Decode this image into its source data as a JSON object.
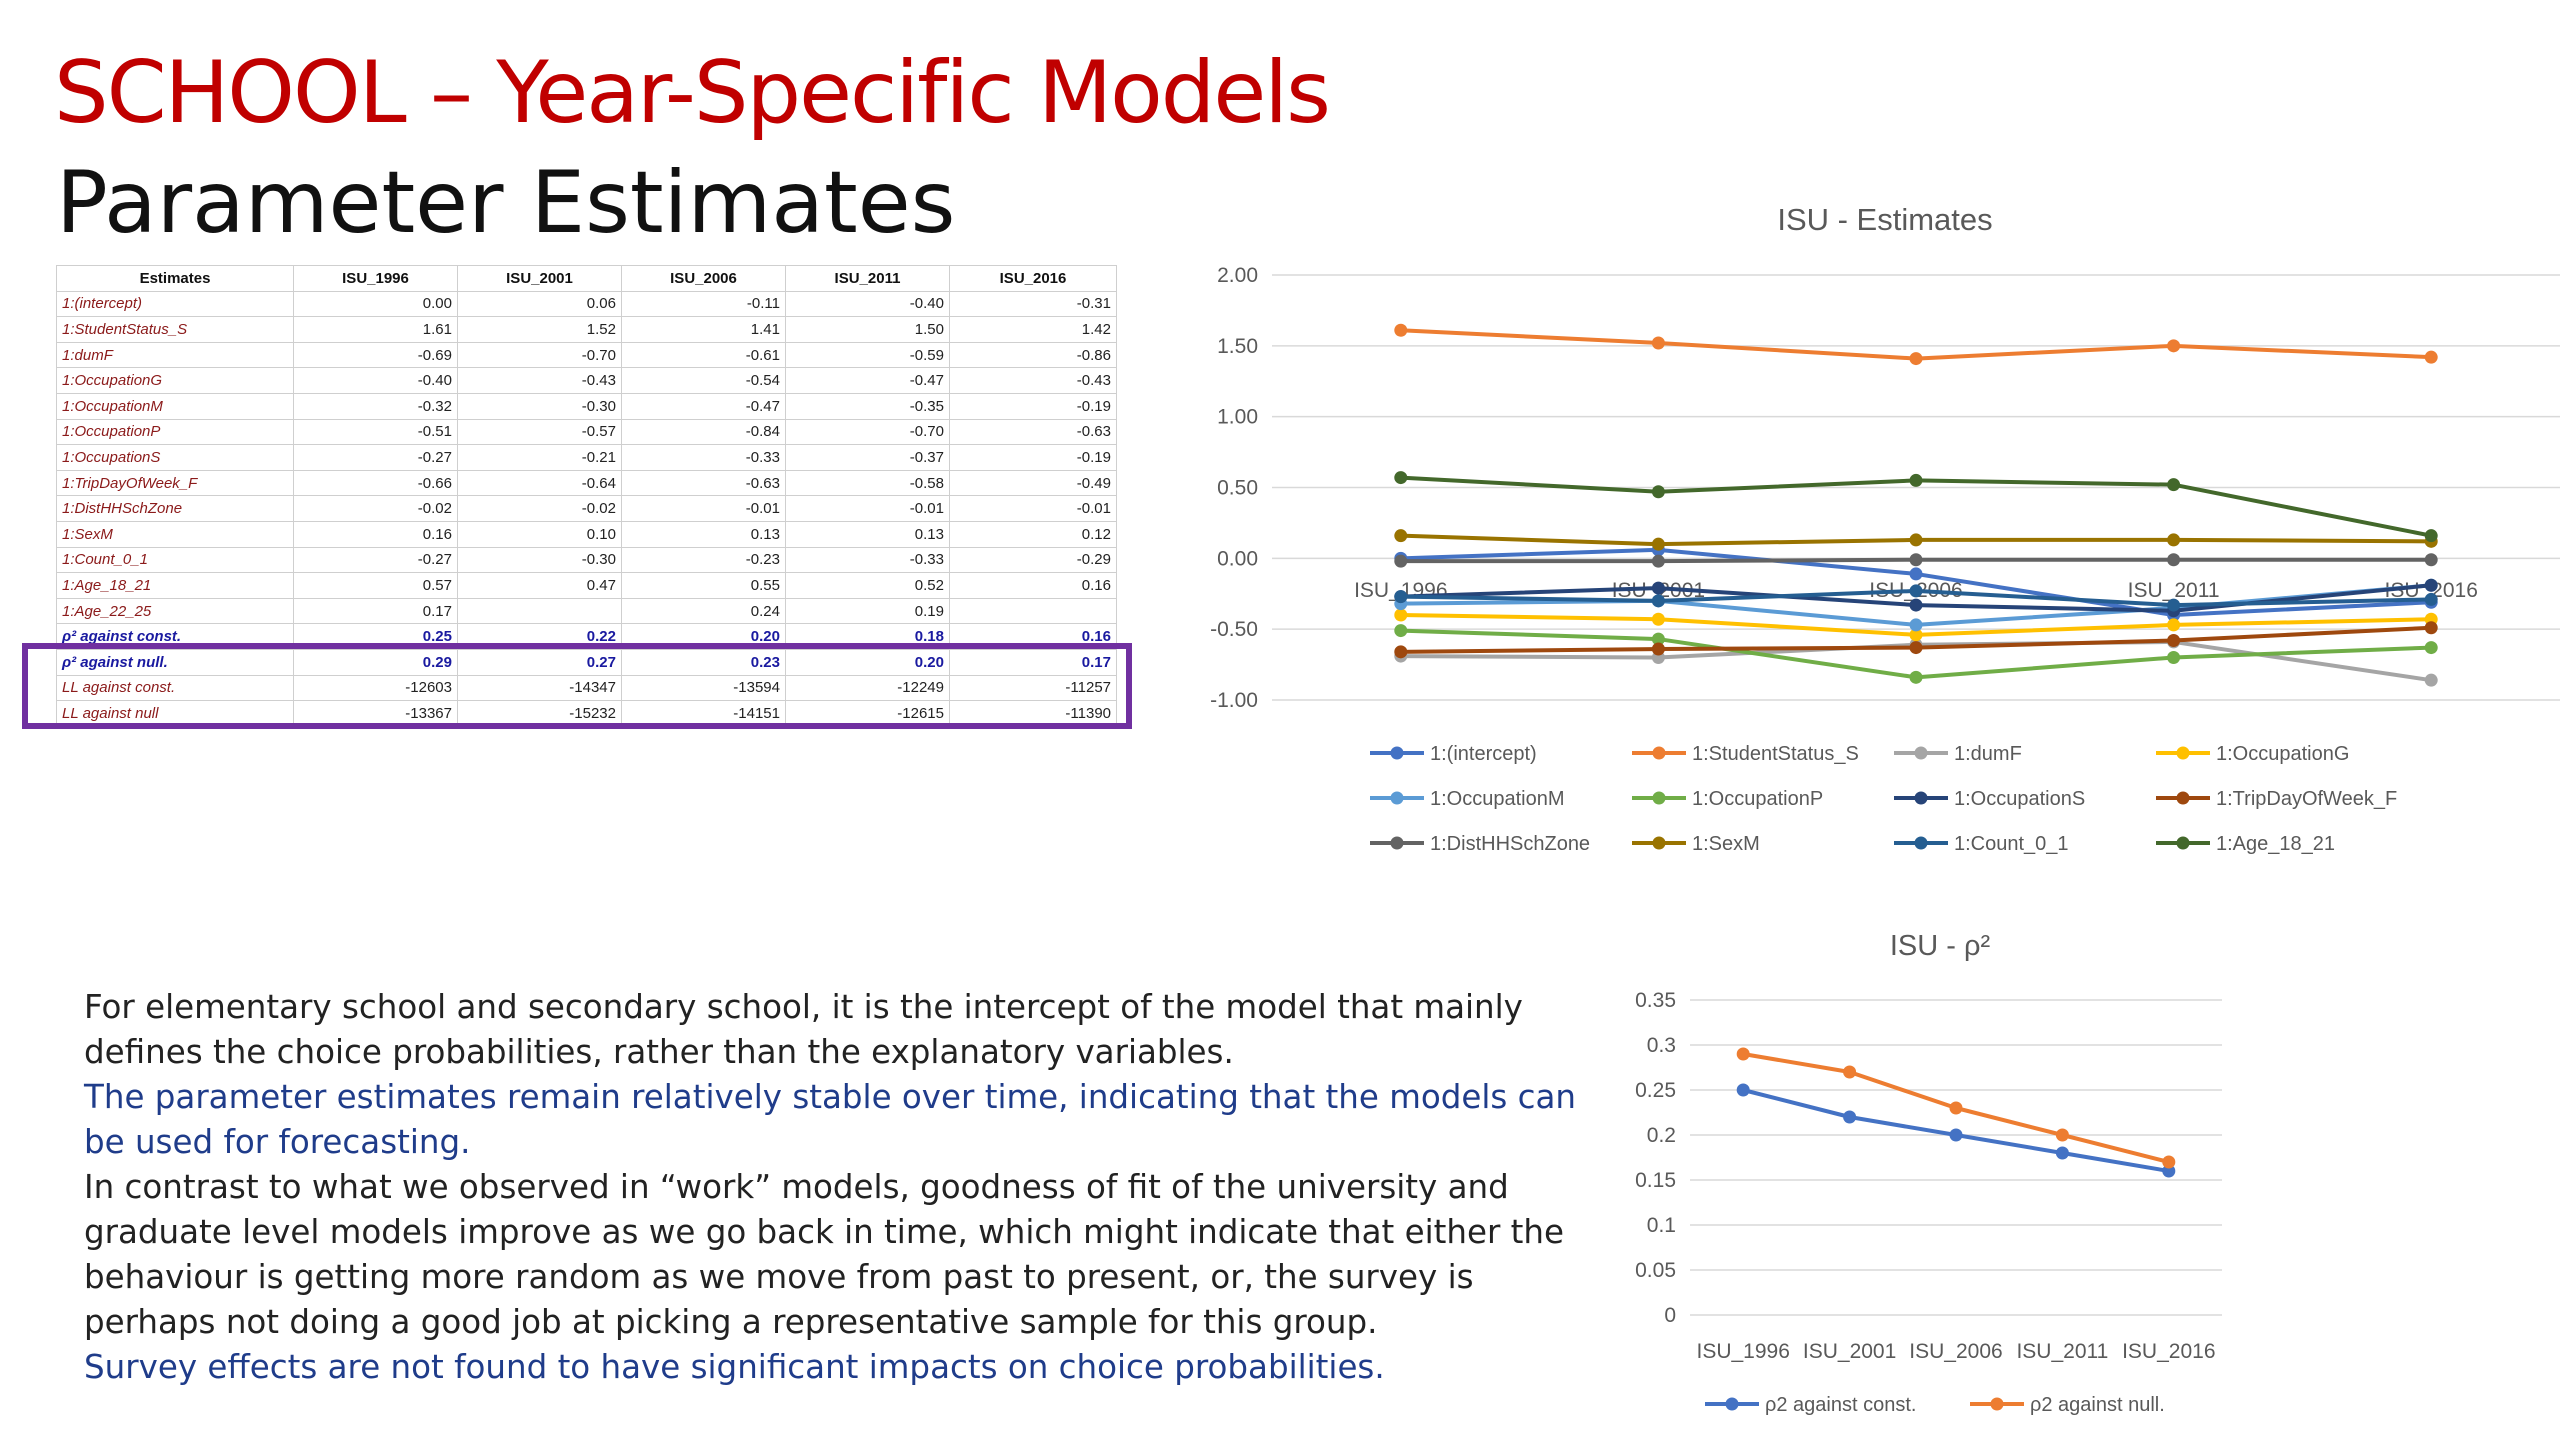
{
  "title": "SCHOOL – Year-Specific Models",
  "subtitle": "Parameter Estimates",
  "table": {
    "headers": [
      "Estimates",
      "ISU_1996",
      "ISU_2001",
      "ISU_2006",
      "ISU_2011",
      "ISU_2016"
    ],
    "rows": [
      [
        "1:(intercept)",
        "0.00",
        "0.06",
        "-0.11",
        "-0.40",
        "-0.31"
      ],
      [
        "1:StudentStatus_S",
        "1.61",
        "1.52",
        "1.41",
        "1.50",
        "1.42"
      ],
      [
        "1:dumF",
        "-0.69",
        "-0.70",
        "-0.61",
        "-0.59",
        "-0.86"
      ],
      [
        "1:OccupationG",
        "-0.40",
        "-0.43",
        "-0.54",
        "-0.47",
        "-0.43"
      ],
      [
        "1:OccupationM",
        "-0.32",
        "-0.30",
        "-0.47",
        "-0.35",
        "-0.19"
      ],
      [
        "1:OccupationP",
        "-0.51",
        "-0.57",
        "-0.84",
        "-0.70",
        "-0.63"
      ],
      [
        "1:OccupationS",
        "-0.27",
        "-0.21",
        "-0.33",
        "-0.37",
        "-0.19"
      ],
      [
        "1:TripDayOfWeek_F",
        "-0.66",
        "-0.64",
        "-0.63",
        "-0.58",
        "-0.49"
      ],
      [
        "1:DistHHSchZone",
        "-0.02",
        "-0.02",
        "-0.01",
        "-0.01",
        "-0.01"
      ],
      [
        "1:SexM",
        "0.16",
        "0.10",
        "0.13",
        "0.13",
        "0.12"
      ],
      [
        "1:Count_0_1",
        "-0.27",
        "-0.30",
        "-0.23",
        "-0.33",
        "-0.29"
      ],
      [
        "1:Age_18_21",
        "0.57",
        "0.47",
        "0.55",
        "0.52",
        "0.16"
      ],
      [
        "1:Age_22_25",
        "0.17",
        "",
        "0.24",
        "0.19",
        ""
      ]
    ],
    "rho_rows": [
      [
        "ρ² against const.",
        "0.25",
        "0.22",
        "0.20",
        "0.18",
        "0.16"
      ],
      [
        "ρ² against null.",
        "0.29",
        "0.27",
        "0.23",
        "0.20",
        "0.17"
      ]
    ],
    "ll_rows": [
      [
        "LL against const.",
        "-12603",
        "-14347",
        "-13594",
        "-12249",
        "-11257"
      ],
      [
        "LL against null",
        "-13367",
        "-15232",
        "-14151",
        "-12615",
        "-11390"
      ]
    ]
  },
  "chart_data": [
    {
      "type": "line",
      "title": "ISU - Estimates",
      "categories": [
        "ISU_1996",
        "ISU_2001",
        "ISU_2006",
        "ISU_2011",
        "ISU_2016"
      ],
      "ylim": [
        -1.0,
        2.0
      ],
      "yticks": [
        "2.00",
        "1.50",
        "1.00",
        "0.50",
        "0.00",
        "-0.50",
        "-1.00"
      ],
      "grid": true,
      "legend_position": "bottom",
      "series": [
        {
          "name": "1:(intercept)",
          "color": "#4472c4",
          "values": [
            0.0,
            0.06,
            -0.11,
            -0.4,
            -0.31
          ]
        },
        {
          "name": "1:StudentStatus_S",
          "color": "#ed7d31",
          "values": [
            1.61,
            1.52,
            1.41,
            1.5,
            1.42
          ]
        },
        {
          "name": "1:dumF",
          "color": "#a5a5a5",
          "values": [
            -0.69,
            -0.7,
            -0.61,
            -0.59,
            -0.86
          ]
        },
        {
          "name": "1:OccupationG",
          "color": "#ffc000",
          "values": [
            -0.4,
            -0.43,
            -0.54,
            -0.47,
            -0.43
          ]
        },
        {
          "name": "1:OccupationM",
          "color": "#5b9bd5",
          "values": [
            -0.32,
            -0.3,
            -0.47,
            -0.35,
            -0.19
          ]
        },
        {
          "name": "1:OccupationP",
          "color": "#70ad47",
          "values": [
            -0.51,
            -0.57,
            -0.84,
            -0.7,
            -0.63
          ]
        },
        {
          "name": "1:OccupationS",
          "color": "#264478",
          "values": [
            -0.27,
            -0.21,
            -0.33,
            -0.37,
            -0.19
          ]
        },
        {
          "name": "1:TripDayOfWeek_F",
          "color": "#9e480e",
          "values": [
            -0.66,
            -0.64,
            -0.63,
            -0.58,
            -0.49
          ]
        },
        {
          "name": "1:DistHHSchZone",
          "color": "#636363",
          "values": [
            -0.02,
            -0.02,
            -0.01,
            -0.01,
            -0.01
          ]
        },
        {
          "name": "1:SexM",
          "color": "#997300",
          "values": [
            0.16,
            0.1,
            0.13,
            0.13,
            0.12
          ]
        },
        {
          "name": "1:Count_0_1",
          "color": "#255e91",
          "values": [
            -0.27,
            -0.3,
            -0.23,
            -0.33,
            -0.29
          ]
        },
        {
          "name": "1:Age_18_21",
          "color": "#43682b",
          "values": [
            0.57,
            0.47,
            0.55,
            0.52,
            0.16
          ]
        }
      ]
    },
    {
      "type": "line",
      "title": "ISU -  ρ²",
      "categories": [
        "ISU_1996",
        "ISU_2001",
        "ISU_2006",
        "ISU_2011",
        "ISU_2016"
      ],
      "ylim": [
        0,
        0.35
      ],
      "yticks": [
        "0.35",
        "0.3",
        "0.25",
        "0.2",
        "0.15",
        "0.1",
        "0.05",
        "0"
      ],
      "grid": true,
      "legend_position": "bottom",
      "series": [
        {
          "name": "ρ2 against const.",
          "color": "#4472c4",
          "values": [
            0.25,
            0.22,
            0.2,
            0.18,
            0.16
          ]
        },
        {
          "name": "ρ2 against null.",
          "color": "#ed7d31",
          "values": [
            0.29,
            0.27,
            0.23,
            0.2,
            0.17
          ]
        }
      ]
    }
  ],
  "text": {
    "p1": "For elementary school and secondary school, it is the intercept of the model that mainly defines the choice probabilities, rather than the explanatory variables.",
    "p2": "The parameter estimates remain relatively stable over time, indicating that the models can be used for forecasting.",
    "p3": "In contrast to what we observed in “work” models, goodness of fit of the university and graduate level models improve as we go back in time, which might indicate that either the behaviour is getting more random as we move from past to present, or, the survey is perhaps not doing a good job at picking a representative sample for this group.",
    "p4": "Survey effects are not found to have significant impacts on choice probabilities."
  }
}
